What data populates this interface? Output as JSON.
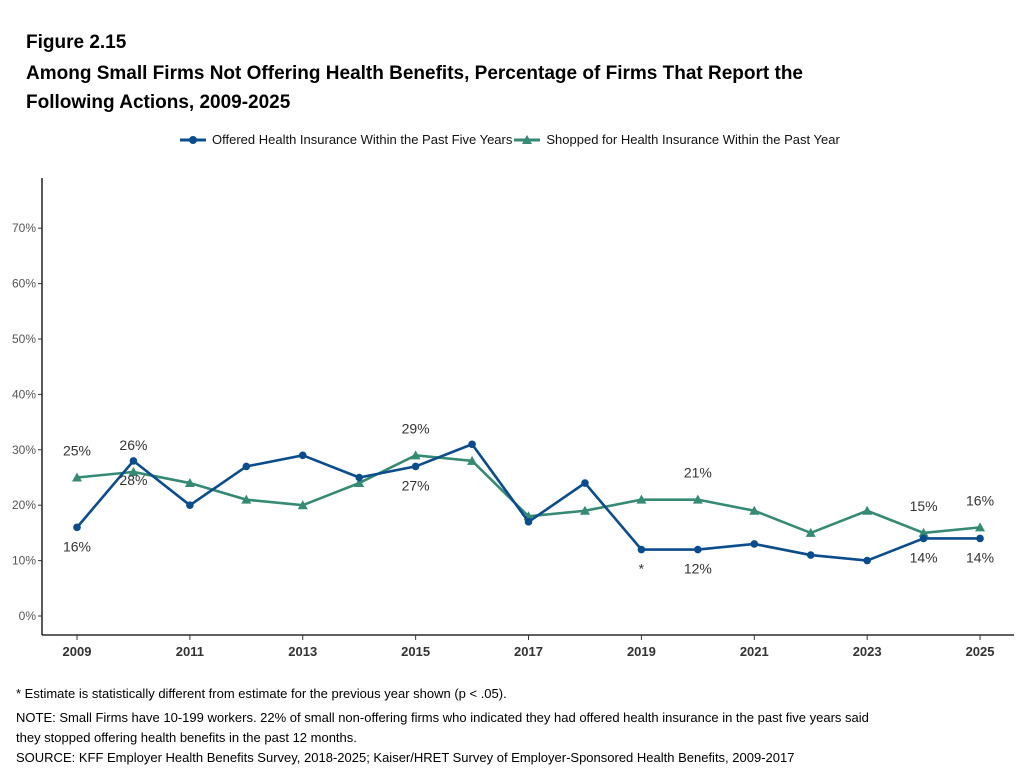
{
  "figure_label": "Figure 2.15",
  "title_line1": "Among Small Firms Not Offering Health Benefits, Percentage of Firms That Report the",
  "title_line2": "Following Actions, 2009-2025",
  "notes": [
    "* Estimate is statistically different from estimate for the previous year shown (p < .05).",
    "NOTE: Small Firms have 10-199 workers. 22% of small non-offering firms who indicated they had offered health insurance in the past five years said",
    "they stopped offering health benefits in the past 12 months.",
    "SOURCE: KFF Employer Health Benefits Survey, 2018-2025; Kaiser/HRET Survey of Employer-Sponsored Health Benefits, 2009-2017"
  ],
  "chart_data": {
    "type": "line",
    "legend_position": "top",
    "grid": false,
    "x": [
      2009,
      2010,
      2011,
      2012,
      2013,
      2014,
      2015,
      2016,
      2017,
      2018,
      2019,
      2020,
      2021,
      2022,
      2023,
      2024,
      2025
    ],
    "x_tick_labels": [
      "2009",
      "2011",
      "2013",
      "2015",
      "2017",
      "2019",
      "2021",
      "2023",
      "2025"
    ],
    "y_tick_labels": [
      "0%",
      "10%",
      "20%",
      "30%",
      "40%",
      "50%",
      "60%",
      "70%"
    ],
    "ylim": [
      0,
      75
    ],
    "series": [
      {
        "name": "Offered Health Insurance Within the Past Five Years",
        "color": "#0b4c8c",
        "marker": "circle",
        "values": [
          16,
          28,
          20,
          27,
          29,
          25,
          27,
          31,
          17,
          24,
          12,
          12,
          13,
          11,
          10,
          14,
          14
        ]
      },
      {
        "name": "Shopped for Health Insurance Within the Past Year",
        "color": "#358a74",
        "marker": "triangle",
        "values": [
          25,
          26,
          24,
          21,
          20,
          24,
          29,
          28,
          18,
          19,
          21,
          21,
          19,
          15,
          19,
          15,
          16
        ]
      }
    ],
    "annotations": [
      {
        "x": 2009,
        "series": 1,
        "text": "25%",
        "pos": "above"
      },
      {
        "x": 2009,
        "series": 0,
        "text": "16%",
        "pos": "below"
      },
      {
        "x": 2010,
        "series": 1,
        "text": "26%",
        "pos": "above"
      },
      {
        "x": 2010,
        "series": 0,
        "text": "28%",
        "pos": "below"
      },
      {
        "x": 2015,
        "series": 1,
        "text": "29%",
        "pos": "above"
      },
      {
        "x": 2015,
        "series": 0,
        "text": "27%",
        "pos": "below"
      },
      {
        "x": 2019,
        "series": 0,
        "text": "*",
        "pos": "below"
      },
      {
        "x": 2020,
        "series": 1,
        "text": "21%",
        "pos": "above"
      },
      {
        "x": 2020,
        "series": 0,
        "text": "12%",
        "pos": "below"
      },
      {
        "x": 2024,
        "series": 1,
        "text": "15%",
        "pos": "above"
      },
      {
        "x": 2024,
        "series": 0,
        "text": "14%",
        "pos": "below"
      },
      {
        "x": 2025,
        "series": 1,
        "text": "16%",
        "pos": "above"
      },
      {
        "x": 2025,
        "series": 0,
        "text": "14%",
        "pos": "below"
      }
    ]
  }
}
